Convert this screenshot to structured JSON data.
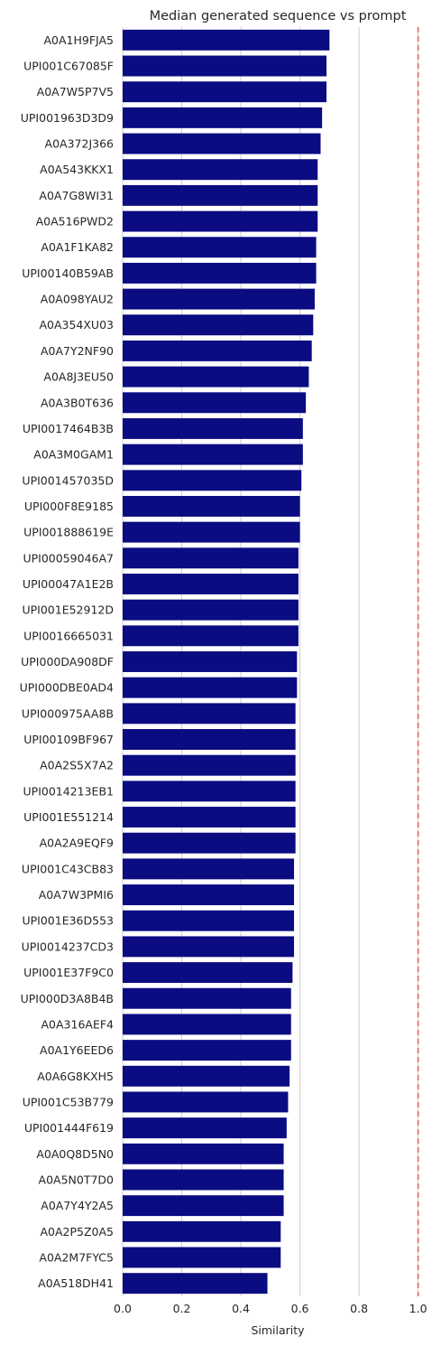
{
  "chart_data": {
    "type": "bar",
    "orientation": "horizontal",
    "title": "Median generated sequence vs prompt",
    "xlabel": "Similarity",
    "ylabel": "",
    "xlim": [
      0,
      1.05
    ],
    "xticks": [
      "0.0",
      "0.2",
      "0.4",
      "0.6",
      "0.8",
      "1.0"
    ],
    "grid": "vertical",
    "reference_line": {
      "x": 1.0,
      "style": "dashed",
      "color": "#e06666"
    },
    "bar_color": "#0b0b82",
    "categories": [
      "A0A1H9FJA5",
      "UPI001C67085F",
      "A0A7W5P7V5",
      "UPI001963D3D9",
      "A0A372J366",
      "A0A543KKX1",
      "A0A7G8WI31",
      "A0A516PWD2",
      "A0A1F1KA82",
      "UPI00140B59AB",
      "A0A098YAU2",
      "A0A354XU03",
      "A0A7Y2NF90",
      "A0A8J3EU50",
      "A0A3B0T636",
      "UPI0017464B3B",
      "A0A3M0GAM1",
      "UPI001457035D",
      "UPI000F8E9185",
      "UPI001888619E",
      "UPI00059046A7",
      "UPI00047A1E2B",
      "UPI001E52912D",
      "UPI0016665031",
      "UPI000DA908DF",
      "UPI000DBE0AD4",
      "UPI000975AA8B",
      "UPI00109BF967",
      "A0A2S5X7A2",
      "UPI0014213EB1",
      "UPI001E551214",
      "A0A2A9EQF9",
      "UPI001C43CB83",
      "A0A7W3PMI6",
      "UPI001E36D553",
      "UPI0014237CD3",
      "UPI001E37F9C0",
      "UPI000D3A8B4B",
      "A0A316AEF4",
      "A0A1Y6EED6",
      "A0A6G8KXH5",
      "UPI001C53B779",
      "UPI001444F619",
      "A0A0Q8D5N0",
      "A0A5N0T7D0",
      "A0A7Y4Y2A5",
      "A0A2P5Z0A5",
      "A0A2M7FYC5",
      "A0A518DH41"
    ],
    "values": [
      0.7,
      0.69,
      0.69,
      0.675,
      0.67,
      0.66,
      0.66,
      0.66,
      0.655,
      0.655,
      0.65,
      0.645,
      0.64,
      0.63,
      0.62,
      0.61,
      0.61,
      0.605,
      0.6,
      0.6,
      0.595,
      0.595,
      0.595,
      0.595,
      0.59,
      0.59,
      0.585,
      0.585,
      0.585,
      0.585,
      0.585,
      0.585,
      0.58,
      0.58,
      0.58,
      0.58,
      0.575,
      0.57,
      0.57,
      0.57,
      0.565,
      0.56,
      0.555,
      0.545,
      0.545,
      0.545,
      0.535,
      0.535,
      0.49
    ]
  }
}
